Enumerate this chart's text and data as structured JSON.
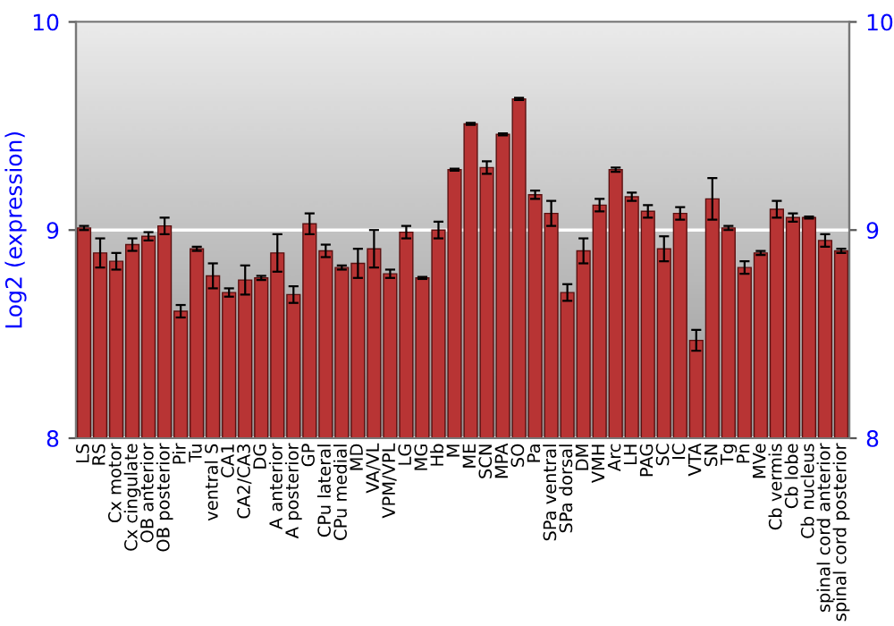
{
  "chart_data": {
    "type": "bar",
    "ylabel": "Log2 (expression)",
    "categories": [
      "LS",
      "RS",
      "Cx motor",
      "Cx cingulate",
      "OB anterior",
      "OB posterior",
      "Pir",
      "Tu",
      "ventral S",
      "CA1",
      "CA2/CA3",
      "DG",
      "A anterior",
      "A posterior",
      "GP",
      "CPu lateral",
      "CPu medial",
      "MD",
      "VA/VL",
      "VPM/VPL",
      "LG",
      "MG",
      "Hb",
      "M",
      "ME",
      "SCN",
      "MPA",
      "SO",
      "Pa",
      "SPa ventral",
      "SPa dorsal",
      "DM",
      "VMH",
      "Arc",
      "LH",
      "PAG",
      "SC",
      "IC",
      "VTA",
      "SN",
      "Tg",
      "Pn",
      "MVe",
      "Cb vermis",
      "Cb lobe",
      "Cb nucleus",
      "spinal cord anterior",
      "spinal cord posterior"
    ],
    "values": [
      9.01,
      8.89,
      8.85,
      8.93,
      8.97,
      9.02,
      8.61,
      8.91,
      8.78,
      8.7,
      8.76,
      8.77,
      8.89,
      8.69,
      9.03,
      8.9,
      8.82,
      8.84,
      8.91,
      8.79,
      8.99,
      8.77,
      9.0,
      9.29,
      9.51,
      9.3,
      9.46,
      9.63,
      9.17,
      9.08,
      8.7,
      8.9,
      9.12,
      9.29,
      9.16,
      9.09,
      8.91,
      9.08,
      8.47,
      9.15,
      9.01,
      8.82,
      8.89,
      9.1,
      9.06,
      9.06,
      8.95,
      8.9
    ],
    "errors": [
      0.01,
      0.07,
      0.04,
      0.03,
      0.02,
      0.04,
      0.03,
      0.01,
      0.06,
      0.02,
      0.07,
      0.01,
      0.09,
      0.04,
      0.05,
      0.03,
      0.01,
      0.07,
      0.09,
      0.02,
      0.03,
      0.005,
      0.04,
      0.005,
      0.005,
      0.03,
      0.005,
      0.005,
      0.02,
      0.06,
      0.04,
      0.06,
      0.03,
      0.01,
      0.02,
      0.03,
      0.06,
      0.03,
      0.05,
      0.1,
      0.01,
      0.03,
      0.01,
      0.04,
      0.02,
      0.005,
      0.03,
      0.01
    ],
    "color": "#b83434",
    "ylim": [
      8,
      10
    ],
    "yticks": [
      8,
      9,
      10
    ],
    "y2lim": [
      8,
      10
    ],
    "y2ticks": [
      8,
      9,
      10
    ],
    "grid": "y"
  }
}
